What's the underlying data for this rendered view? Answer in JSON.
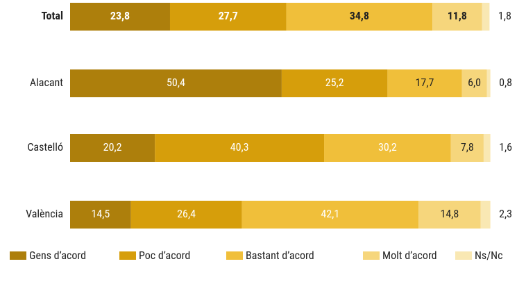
{
  "chart_data": {
    "type": "stacked_barh",
    "categories": [
      "Total",
      "Alacant",
      "Castelló",
      "València"
    ],
    "xlim": [
      0,
      100
    ],
    "series": [
      {
        "name": "Gens d’acord",
        "color": "#ad7f0c",
        "values": [
          23.8,
          50.4,
          20.2,
          14.5
        ],
        "value_labels": [
          "23,8",
          "50,4",
          "20,2",
          "14,5"
        ]
      },
      {
        "name": "Poc d’acord",
        "color": "#d69e0b",
        "values": [
          27.7,
          25.2,
          40.3,
          26.4
        ],
        "value_labels": [
          "27,7",
          "25,2",
          "40,3",
          "26,4"
        ]
      },
      {
        "name": "Bastant d’acord",
        "color": "#f0bf3a",
        "values": [
          34.8,
          17.7,
          30.2,
          42.1
        ],
        "value_labels": [
          "34,8",
          "17,7",
          "30,2",
          "42,1"
        ]
      },
      {
        "name": "Molt d’acord",
        "color": "#f6d67c",
        "values": [
          11.8,
          6.0,
          7.8,
          14.8
        ],
        "value_labels": [
          "11,8",
          "6,0",
          "7,8",
          "14,8"
        ]
      },
      {
        "name": "Ns/Nc",
        "color": "#f9e8b3",
        "values": [
          1.8,
          0.8,
          1.6,
          2.3
        ],
        "value_labels": [
          "1,8",
          "0,8",
          "1,6",
          "2,3"
        ]
      }
    ]
  }
}
